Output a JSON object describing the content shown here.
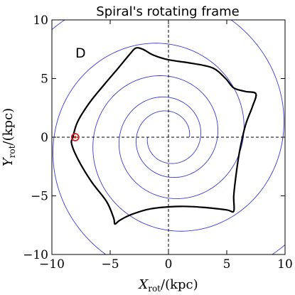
{
  "chart_data": {
    "type": "line",
    "title": "Spiral's rotating frame",
    "panel_label": "D",
    "xlabel": {
      "main": "X",
      "sub": "rot",
      "unit": "/(kpc)"
    },
    "ylabel": {
      "main": "Y",
      "sub": "rot",
      "unit": "/(kpc)"
    },
    "xlim": [
      -10,
      10
    ],
    "ylim": [
      -10,
      10
    ],
    "xticks": [
      -10,
      -5,
      0,
      5,
      10
    ],
    "yticks": [
      -10,
      -5,
      0,
      5,
      10
    ],
    "xtick_labels": [
      "−10",
      "−5",
      "0",
      "5",
      "10"
    ],
    "ytick_labels": [
      "−10",
      "−5",
      "0",
      "5",
      "10"
    ],
    "reference_lines": {
      "x": 0,
      "y": 0,
      "style": "dashed"
    },
    "spiral_arms": {
      "color": "#3a3ad6",
      "pitch_factor": 0.135,
      "arms": [
        {
          "r_start": 1.8,
          "theta_start_deg": 0,
          "r_end": 14
        },
        {
          "r_start": 1.8,
          "theta_start_deg": 180,
          "r_end": 14
        }
      ]
    },
    "orbit": {
      "color": "#000000",
      "points": [
        [
          -8.2,
          0.0
        ],
        [
          -7.8,
          1.3
        ],
        [
          -6.8,
          2.9
        ],
        [
          -5.5,
          4.5
        ],
        [
          -4.3,
          5.9
        ],
        [
          -3.3,
          7.1
        ],
        [
          -2.8,
          7.6
        ],
        [
          -2.2,
          7.5
        ],
        [
          -1.3,
          7.0
        ],
        [
          0.0,
          6.6
        ],
        [
          2.0,
          6.3
        ],
        [
          3.8,
          5.9
        ],
        [
          4.9,
          5.0
        ],
        [
          5.6,
          4.2
        ],
        [
          6.6,
          3.9
        ],
        [
          7.5,
          3.7
        ],
        [
          7.2,
          2.6
        ],
        [
          6.6,
          1.0
        ],
        [
          6.1,
          -1.2
        ],
        [
          5.8,
          -3.2
        ],
        [
          5.6,
          -5.0
        ],
        [
          5.6,
          -6.3
        ],
        [
          5.0,
          -6.2
        ],
        [
          3.2,
          -6.0
        ],
        [
          1.0,
          -5.9
        ],
        [
          -1.5,
          -6.1
        ],
        [
          -3.2,
          -6.6
        ],
        [
          -4.2,
          -7.1
        ],
        [
          -4.6,
          -7.4
        ],
        [
          -4.7,
          -6.9
        ],
        [
          -5.3,
          -5.5
        ],
        [
          -6.6,
          -3.8
        ],
        [
          -7.7,
          -2.0
        ],
        [
          -8.3,
          -0.6
        ],
        [
          -8.2,
          0.0
        ]
      ]
    },
    "marker": {
      "x": -8.0,
      "y": 0.0,
      "color": "#d42020",
      "style": "circled-dot"
    }
  }
}
